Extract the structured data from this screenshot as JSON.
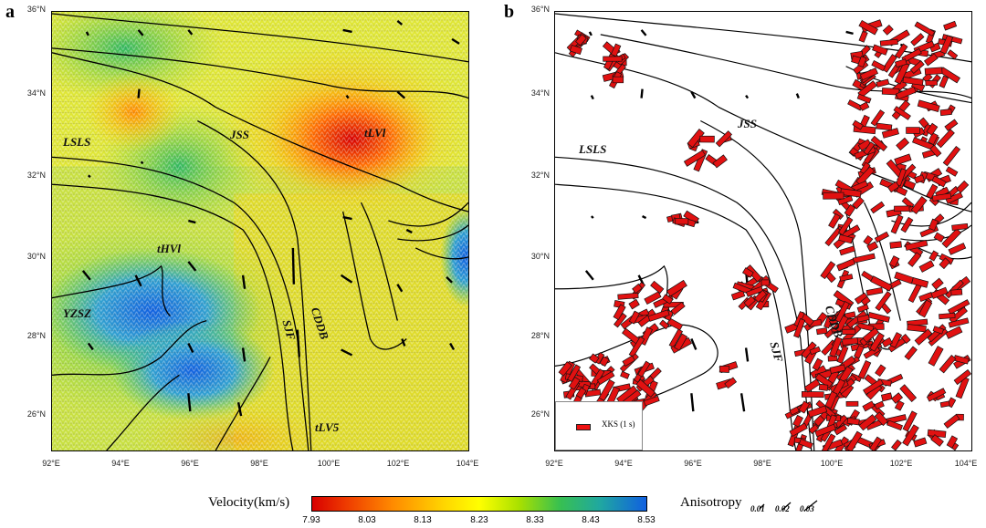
{
  "panels": {
    "a": {
      "label": "a",
      "labels": {
        "lsls": "LSLS",
        "jss": "JSS",
        "lvl4": "tLVl",
        "hvl": "tHVl",
        "yzsz": "YZSZ",
        "cddb": "CDDB",
        "sjf": "SJF",
        "lvl5": "tLV5"
      }
    },
    "b": {
      "label": "b",
      "labels": {
        "lsls": "LSLS",
        "jss": "JSS",
        "cddb": "CDDB",
        "sjf": "SJF"
      },
      "legend": "XKS (1 s)"
    }
  },
  "axes": {
    "y_labels": [
      "36°N",
      "34°N",
      "32°N",
      "30°N",
      "28°N",
      "26°N"
    ],
    "x_labels": [
      "92°E",
      "94°E",
      "96°E",
      "98°E",
      "100°E",
      "102°E",
      "104°E"
    ]
  },
  "colorbar": {
    "title": "Velocity(km/s)",
    "ticks": [
      "7.93",
      "8.03",
      "8.13",
      "8.23",
      "8.33",
      "8.43",
      "8.53"
    ]
  },
  "anisotropy": {
    "title": "Anisotropy",
    "values": [
      "0.01",
      "0.02",
      "0.03"
    ]
  },
  "colors": {
    "low_velocity": "#d80000",
    "high_velocity": "#1060e0",
    "xks_bar": "#e11111"
  }
}
